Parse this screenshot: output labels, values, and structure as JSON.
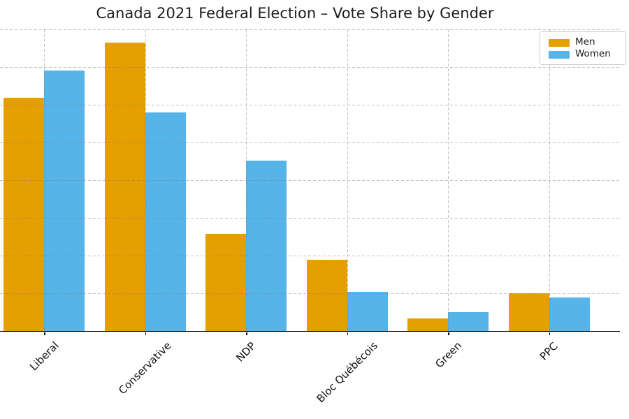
{
  "title": "Canada 2021 Federal Election – Vote Share by Gender",
  "legend": {
    "position": "upper right",
    "items": [
      {
        "label": "Men",
        "color": "#E69F00"
      },
      {
        "label": "Women",
        "color": "#56B4E9"
      }
    ]
  },
  "chart_data": {
    "type": "bar",
    "title": "Canada 2021 Federal Election – Vote Share by Gender",
    "categories": [
      "Liberal",
      "Conservative",
      "NDP",
      "Bloc Québécois",
      "Green",
      "PPC"
    ],
    "series": [
      {
        "name": "Men",
        "color": "#E69F00",
        "values": [
          30.9,
          38.2,
          12.9,
          9.4,
          1.7,
          5.0
        ]
      },
      {
        "name": "Women",
        "color": "#56B4E9",
        "values": [
          34.5,
          29.0,
          22.6,
          5.2,
          2.5,
          4.4
        ]
      }
    ],
    "xlabel": "",
    "ylabel": "",
    "ylim": [
      0,
      40
    ],
    "ytick_step": 5,
    "y_tick_labels_visible": false,
    "grid": "dashed, horizontal every 5 and vertical at each category, drawn with transparency over bars",
    "x_tick_label_rotation": 45,
    "legend_position": "upper right",
    "background": "#ffffff",
    "axis_line_color": "#000000",
    "grid_color": "#c9c9c9"
  }
}
